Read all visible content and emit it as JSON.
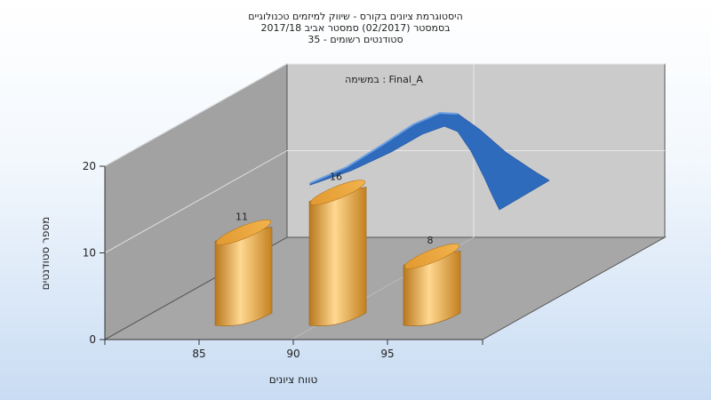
{
  "title": {
    "line1": "היסטוגרמת ציונים בקורס - שיווק למיזמים טכנולוגיים",
    "line2": "בסמסטר  (02/2017)  סמסטר אביב 2017/18",
    "line3": "סטודנטים רשומים - 35"
  },
  "chart_data": {
    "type": "bar",
    "title": "היסטוגרמת ציונים בקורס - שיווק למיזמים טכנולוגיים",
    "subtitle": [
      "בסמסטר  (02/2017)  סמסטר אביב 2017/18",
      "סטודנטים רשומים - 35"
    ],
    "xlabel": "טווח ציונים",
    "ylabel": "מספר סטודנטים",
    "annotation": "במשימה : Final_A",
    "categories": [
      "85",
      "90",
      "95"
    ],
    "values": [
      11,
      16,
      8
    ],
    "data_labels": [
      "11",
      "16",
      "8"
    ],
    "yticks": [
      "0",
      "10",
      "20"
    ],
    "ylim": [
      0,
      20
    ],
    "curve": {
      "type": "area",
      "description": "normal distribution curve",
      "color": "#2f6bbd"
    },
    "bar_color": "#e8a848",
    "grid": true,
    "view": "3d"
  }
}
